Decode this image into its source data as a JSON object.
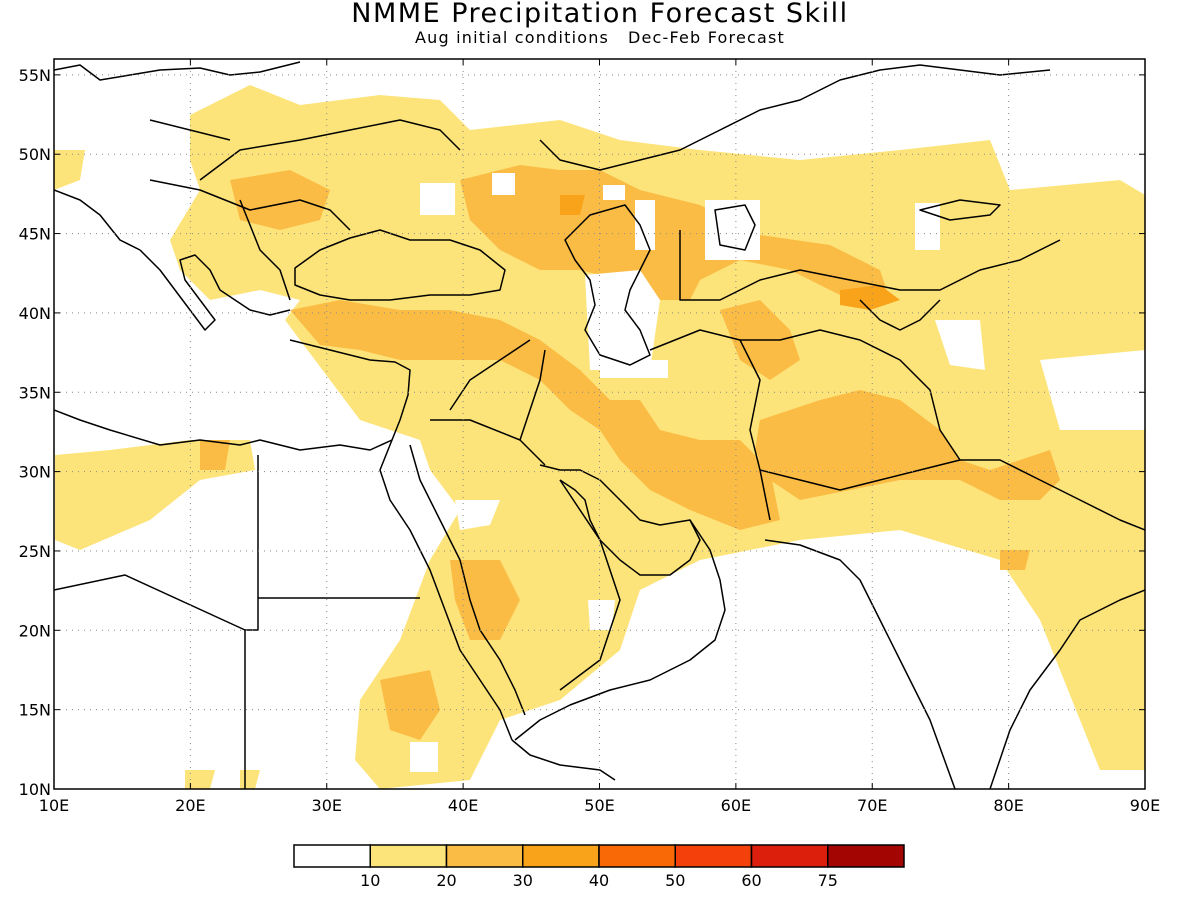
{
  "title": "NMME Precipitation Forecast Skill",
  "subtitle": "Aug initial conditions   Dec-Feb Forecast",
  "map": {
    "lon_range": [
      10,
      90
    ],
    "lat_range": [
      10,
      56
    ],
    "lat_ticks": [
      {
        "value": 55,
        "label": "55N"
      },
      {
        "value": 50,
        "label": "50N"
      },
      {
        "value": 45,
        "label": "45N"
      },
      {
        "value": 40,
        "label": "40N"
      },
      {
        "value": 35,
        "label": "35N"
      },
      {
        "value": 30,
        "label": "30N"
      },
      {
        "value": 25,
        "label": "25N"
      },
      {
        "value": 20,
        "label": "20N"
      },
      {
        "value": 15,
        "label": "15N"
      },
      {
        "value": 10,
        "label": "10N"
      }
    ],
    "lon_ticks": [
      {
        "value": 10,
        "label": "10E"
      },
      {
        "value": 20,
        "label": "20E"
      },
      {
        "value": 30,
        "label": "30E"
      },
      {
        "value": 40,
        "label": "40E"
      },
      {
        "value": 50,
        "label": "50E"
      },
      {
        "value": 60,
        "label": "60E"
      },
      {
        "value": 70,
        "label": "70E"
      },
      {
        "value": 80,
        "label": "80E"
      },
      {
        "value": 90,
        "label": "90E"
      }
    ],
    "grid": "dotted",
    "colors": {
      "land": "#ffffff",
      "skill_10_20": "#fde47a",
      "skill_20_30": "#fbbc45",
      "skill_30_40": "#f9a31a",
      "coastline": "#000000"
    }
  },
  "colorbar": {
    "colors": [
      "#ffffff",
      "#fde47a",
      "#fbbc45",
      "#f9a31a",
      "#f96a07",
      "#f4400a",
      "#dc1f0c",
      "#a30503"
    ],
    "labels": [
      "10",
      "20",
      "30",
      "40",
      "50",
      "60",
      "75"
    ]
  }
}
